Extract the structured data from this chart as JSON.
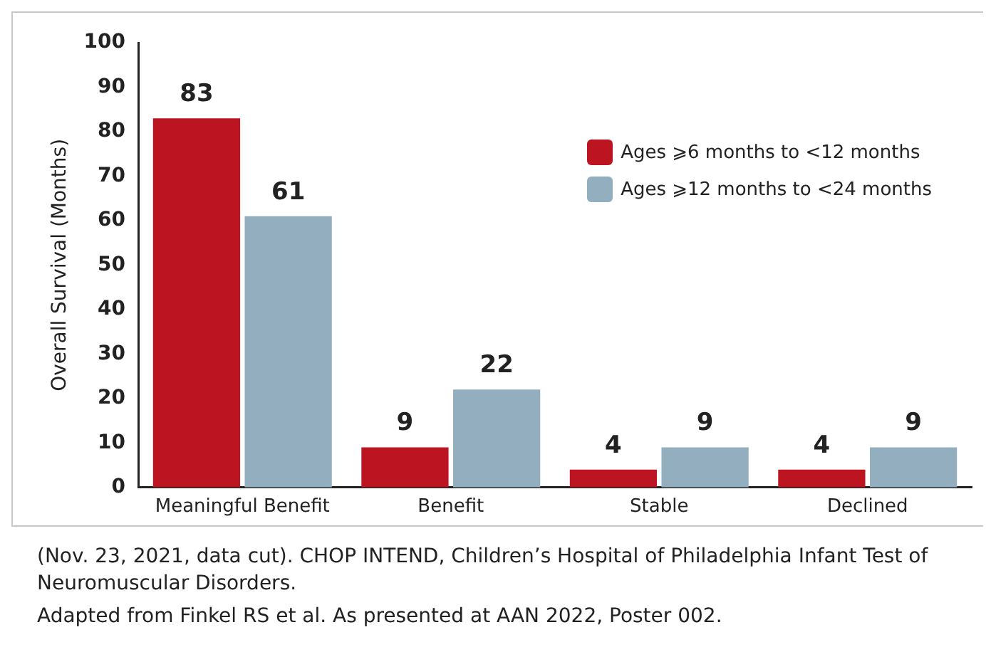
{
  "chart_data": {
    "type": "bar",
    "ylabel": "Overall Survival (Months)",
    "categories": [
      "Meaningful Benefit",
      "Benefit",
      "Stable",
      "Declined"
    ],
    "series": [
      {
        "name": "Ages ⩾6 months to <12 months",
        "color": "#bc1421",
        "values": [
          83,
          9,
          4,
          4
        ]
      },
      {
        "name": "Ages ⩾12 months to <24 months",
        "color": "#93afbf",
        "values": [
          61,
          22,
          9,
          9
        ]
      }
    ],
    "ylim": [
      0,
      100
    ],
    "yticks": [
      0,
      10,
      20,
      30,
      40,
      50,
      60,
      70,
      80,
      90,
      100
    ],
    "grid": false,
    "legend": "top right",
    "data_labels": true,
    "annotations": [
      "(Nov. 23, 2021, data cut). CHOP INTEND, Children’s Hospital of Philadelphia Infant Test of Neuromuscular Disorders.",
      "Adapted from Finkel RS et al. As presented at AAN 2022, Poster 002."
    ]
  }
}
